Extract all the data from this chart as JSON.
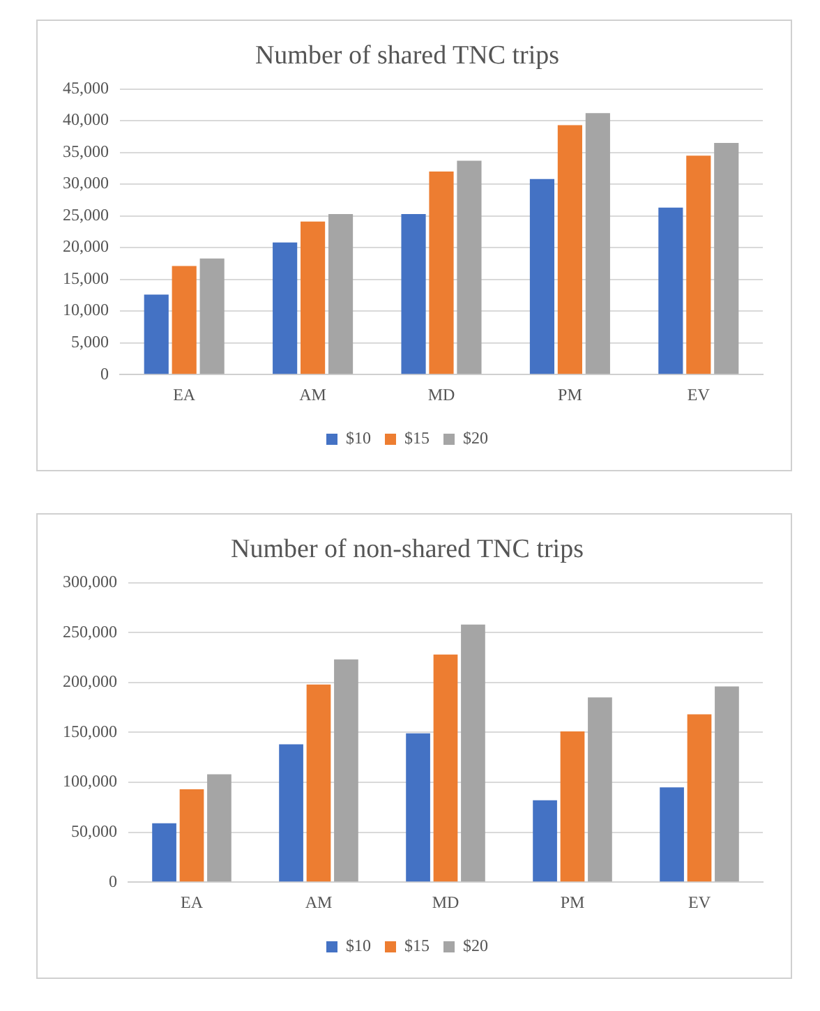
{
  "chart_data": [
    {
      "type": "bar",
      "title": "Number of shared TNC trips",
      "categories": [
        "EA",
        "AM",
        "MD",
        "PM",
        "EV"
      ],
      "series": [
        {
          "name": "$10",
          "color": "#4472c4",
          "values": [
            12600,
            20800,
            25300,
            30800,
            26300
          ]
        },
        {
          "name": "$15",
          "color": "#ed7d31",
          "values": [
            17100,
            24100,
            32000,
            39300,
            34500
          ]
        },
        {
          "name": "$20",
          "color": "#a5a5a5",
          "values": [
            18300,
            25300,
            33700,
            41200,
            36500
          ]
        }
      ],
      "ylim": [
        0,
        45000
      ],
      "yticks": [
        {
          "value": 0,
          "label": "0"
        },
        {
          "value": 5000,
          "label": "5,000"
        },
        {
          "value": 10000,
          "label": "10,000"
        },
        {
          "value": 15000,
          "label": "15,000"
        },
        {
          "value": 20000,
          "label": "20,000"
        },
        {
          "value": 25000,
          "label": "25,000"
        },
        {
          "value": 30000,
          "label": "30,000"
        },
        {
          "value": 35000,
          "label": "35,000"
        },
        {
          "value": 40000,
          "label": "40,000"
        },
        {
          "value": 45000,
          "label": "45,000"
        }
      ],
      "grid": "y",
      "legend": "bottom"
    },
    {
      "type": "bar",
      "title": "Number of non-shared TNC trips",
      "categories": [
        "EA",
        "AM",
        "MD",
        "PM",
        "EV"
      ],
      "series": [
        {
          "name": "$10",
          "color": "#4472c4",
          "values": [
            59000,
            138000,
            149000,
            82000,
            95000
          ]
        },
        {
          "name": "$15",
          "color": "#ed7d31",
          "values": [
            93000,
            198000,
            228000,
            151000,
            168000
          ]
        },
        {
          "name": "$20",
          "color": "#a5a5a5",
          "values": [
            108000,
            223000,
            258000,
            185000,
            196000
          ]
        }
      ],
      "ylim": [
        0,
        300000
      ],
      "yticks": [
        {
          "value": 0,
          "label": "0"
        },
        {
          "value": 50000,
          "label": "50,000"
        },
        {
          "value": 100000,
          "label": "100,000"
        },
        {
          "value": 150000,
          "label": "150,000"
        },
        {
          "value": 200000,
          "label": "200,000"
        },
        {
          "value": 250000,
          "label": "250,000"
        },
        {
          "value": 300000,
          "label": "300,000"
        }
      ],
      "grid": "y",
      "legend": "bottom"
    }
  ]
}
